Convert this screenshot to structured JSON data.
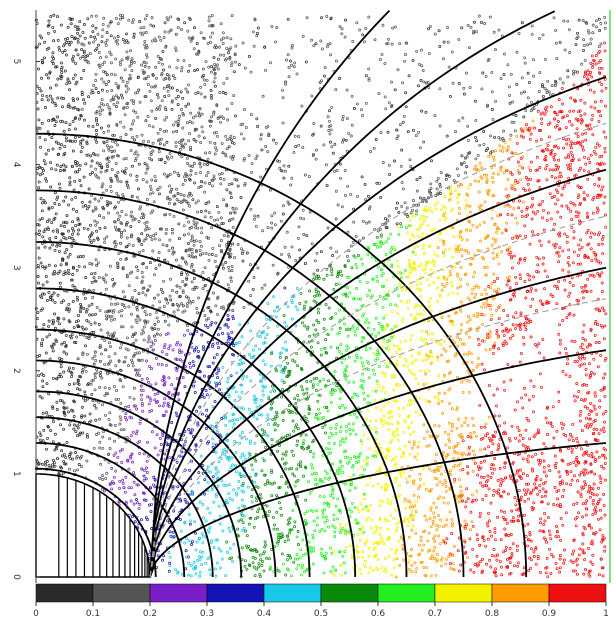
{
  "chart_data": {
    "type": "scatter",
    "title": "",
    "xlabel": "",
    "ylabel": "",
    "x_tick_labels": [
      "0",
      "0.1",
      "0.2",
      "0.3",
      "0.4",
      "0.5",
      "0.6",
      "0.7",
      "0.8",
      "0.9",
      "1"
    ],
    "y_tick_labels": [
      "0",
      "1",
      "2",
      "3",
      "4",
      "5"
    ],
    "xlim": [
      0,
      1
    ],
    "ylim": [
      0,
      5.5
    ],
    "grid": false,
    "legend": "color bar along x-axis",
    "colorbar": [
      {
        "range": [
          0.0,
          0.1
        ],
        "color": "#2a2a2a"
      },
      {
        "range": [
          0.1,
          0.2
        ],
        "color": "#555555"
      },
      {
        "range": [
          0.2,
          0.3
        ],
        "color": "#7a1fc8"
      },
      {
        "range": [
          0.3,
          0.4
        ],
        "color": "#1414b4"
      },
      {
        "range": [
          0.4,
          0.5
        ],
        "color": "#18c8e8"
      },
      {
        "range": [
          0.5,
          0.6
        ],
        "color": "#0a8a0a"
      },
      {
        "range": [
          0.6,
          0.7
        ],
        "color": "#22ee22"
      },
      {
        "range": [
          0.7,
          0.8
        ],
        "color": "#f2f200"
      },
      {
        "range": [
          0.8,
          0.9
        ],
        "color": "#ff9a00"
      },
      {
        "range": [
          0.9,
          1.0
        ],
        "color": "#ee1010"
      }
    ],
    "black_curves": [
      {
        "type": "circle",
        "radius": 0.21
      },
      {
        "type": "circle",
        "radius": 0.26
      },
      {
        "type": "circle",
        "radius": 0.31
      },
      {
        "type": "circle",
        "radius": 0.36
      },
      {
        "type": "circle",
        "radius": 0.42
      },
      {
        "type": "circle",
        "radius": 0.48
      },
      {
        "type": "circle",
        "radius": 0.56
      },
      {
        "type": "circle",
        "radius": 0.65
      },
      {
        "type": "circle",
        "radius": 0.75
      },
      {
        "type": "circle",
        "radius": 0.86
      },
      {
        "type": "boundary",
        "edge_y": 1.3
      },
      {
        "type": "boundary",
        "edge_y": 2.2
      },
      {
        "type": "boundary",
        "edge_y": 3.0
      },
      {
        "type": "boundary",
        "edge_y": 3.95
      },
      {
        "type": "boundary",
        "edge_y": 4.85
      },
      {
        "type": "boundary",
        "edge_y": 5.7
      },
      {
        "type": "boundary",
        "edge_y": 7.0
      }
    ],
    "dashed_curves": [
      {
        "type": "boundary",
        "edge_y": 2.7
      },
      {
        "type": "boundary",
        "edge_y": 3.5
      },
      {
        "type": "boundary",
        "edge_y": 4.4
      }
    ],
    "white_semicircle_radius": 0.2,
    "white_semicircle_lines_x": [
      0.04,
      0.055,
      0.07,
      0.085,
      0.1,
      0.112,
      0.124,
      0.135,
      0.146,
      0.156,
      0.165,
      0.173,
      0.18,
      0.186,
      0.191,
      0.195,
      0.198
    ]
  }
}
